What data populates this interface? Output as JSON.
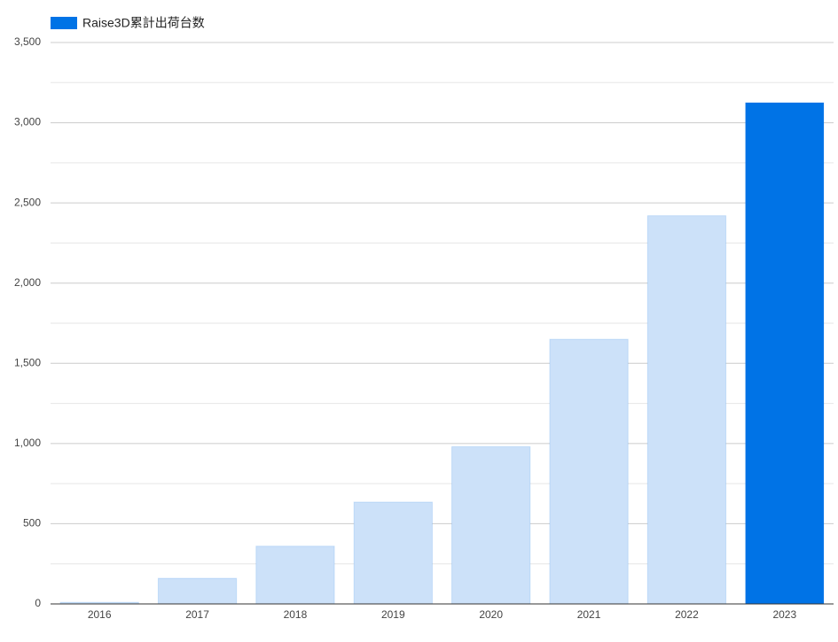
{
  "chart_data": {
    "type": "bar",
    "categories": [
      "2016",
      "2017",
      "2018",
      "2019",
      "2020",
      "2021",
      "2022",
      "2023"
    ],
    "series": [
      {
        "name": "Raise3D累計出荷台数",
        "color": "#0073e6",
        "values": [
          10,
          160,
          360,
          635,
          980,
          1650,
          2420,
          3125
        ],
        "colors": [
          "#cce1f9",
          "#cce1f9",
          "#cce1f9",
          "#cce1f9",
          "#cce1f9",
          "#cce1f9",
          "#cce1f9",
          "#0073e6"
        ]
      }
    ],
    "ylim": [
      0,
      3500
    ],
    "yticks": [
      {
        "value": 0,
        "label": "0"
      },
      {
        "value": 500,
        "label": "500"
      },
      {
        "value": 1000,
        "label": "1,000"
      },
      {
        "value": 1500,
        "label": "1,500"
      },
      {
        "value": 2000,
        "label": "2,000"
      },
      {
        "value": 2500,
        "label": "2,500"
      },
      {
        "value": 3000,
        "label": "3,000"
      },
      {
        "value": 3500,
        "label": "3,500"
      }
    ],
    "minor_yticks": [
      250,
      750,
      1250,
      1750,
      2250,
      2750,
      3250
    ],
    "grid": true,
    "legend": "top-left"
  }
}
